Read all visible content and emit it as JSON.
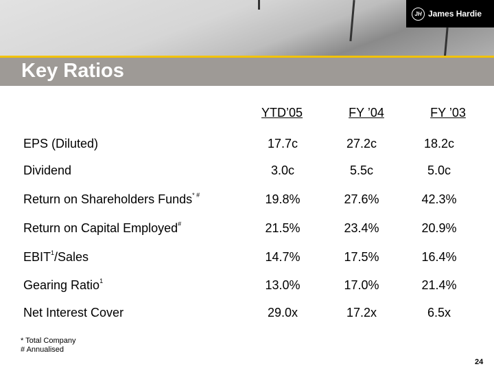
{
  "header": {
    "title": "Key Ratios",
    "logo_text": "James Hardie"
  },
  "columns": [
    "YTD’05",
    "FY ’04",
    "FY ’03"
  ],
  "rows": [
    {
      "label": "EPS (Diluted)",
      "sup": "",
      "values": [
        "17.7c",
        "27.2c",
        "18.2c"
      ]
    },
    {
      "label": "Dividend",
      "sup": "",
      "values": [
        "3.0c",
        "5.5c",
        "5.0c"
      ]
    },
    {
      "label": "Return on Shareholders Funds",
      "sup": "* #",
      "values": [
        "19.8%",
        "27.6%",
        "42.3%"
      ]
    },
    {
      "label": "Return on Capital Employed",
      "sup": "#",
      "values": [
        "21.5%",
        "23.4%",
        "20.9%"
      ]
    },
    {
      "label": "EBIT",
      "sup": "1",
      "suffix": "/Sales",
      "values": [
        "14.7%",
        "17.5%",
        "16.4%"
      ]
    },
    {
      "label": "Gearing Ratio",
      "sup": "1",
      "values": [
        "13.0%",
        "17.0%",
        "21.4%"
      ]
    },
    {
      "label": "Net Interest Cover",
      "sup": "",
      "values": [
        "29.0x",
        "17.2x",
        "6.5x"
      ]
    }
  ],
  "footnotes": [
    "*  Total Company",
    "# Annualised"
  ],
  "page_number": "24",
  "colors": {
    "accent": "#f2c200",
    "band": "#9e9a96"
  }
}
